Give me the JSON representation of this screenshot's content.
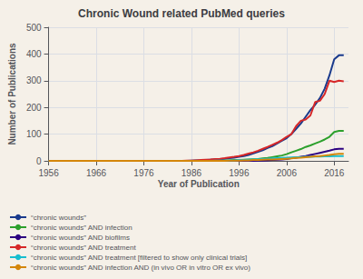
{
  "chart_data": {
    "type": "line",
    "title": "Chronic Wound related PubMed queries",
    "xlabel": "Year of Publication",
    "ylabel": "Number of Publications",
    "xlim": [
      1956,
      2019
    ],
    "ylim": [
      0,
      500
    ],
    "xticks": [
      1956,
      1966,
      1976,
      1986,
      1996,
      2006,
      2016
    ],
    "yticks": [
      0,
      100,
      200,
      300,
      400,
      500
    ],
    "grid": true,
    "legend": "lower left",
    "x": [
      1956,
      1957,
      1958,
      1959,
      1960,
      1961,
      1962,
      1963,
      1964,
      1965,
      1966,
      1967,
      1968,
      1969,
      1970,
      1971,
      1972,
      1973,
      1974,
      1975,
      1976,
      1977,
      1978,
      1979,
      1980,
      1981,
      1982,
      1983,
      1984,
      1985,
      1986,
      1987,
      1988,
      1989,
      1990,
      1991,
      1992,
      1993,
      1994,
      1995,
      1996,
      1997,
      1998,
      1999,
      2000,
      2001,
      2002,
      2003,
      2004,
      2005,
      2006,
      2007,
      2008,
      2009,
      2010,
      2011,
      2012,
      2013,
      2014,
      2015,
      2016,
      2017,
      2018
    ],
    "series": [
      {
        "name": "“chronic wounds”",
        "color": "#1a3a8c",
        "values": [
          0,
          0,
          0,
          0,
          0,
          0,
          0,
          0,
          0,
          0,
          0,
          0,
          0,
          0,
          0,
          0,
          0,
          0,
          0,
          0,
          0,
          0,
          0,
          0,
          0,
          0,
          0,
          0,
          0,
          0,
          1,
          2,
          2,
          3,
          4,
          5,
          6,
          8,
          10,
          12,
          15,
          18,
          22,
          28,
          34,
          40,
          48,
          55,
          65,
          75,
          85,
          100,
          120,
          140,
          165,
          190,
          210,
          235,
          270,
          320,
          380,
          395,
          395
        ]
      },
      {
        "name": "“chronic wounds” AND infection",
        "color": "#2ca02c",
        "values": [
          0,
          0,
          0,
          0,
          0,
          0,
          0,
          0,
          0,
          0,
          0,
          0,
          0,
          0,
          0,
          0,
          0,
          0,
          0,
          0,
          0,
          0,
          0,
          0,
          0,
          0,
          0,
          0,
          0,
          0,
          0,
          0,
          0,
          0,
          0,
          1,
          1,
          1,
          2,
          3,
          3,
          4,
          5,
          6,
          7,
          9,
          11,
          14,
          17,
          20,
          25,
          32,
          38,
          44,
          52,
          58,
          65,
          72,
          80,
          90,
          108,
          112,
          112
        ]
      },
      {
        "name": "“chronic wounds” AND biofilms",
        "color": "#2c0080",
        "values": [
          0,
          0,
          0,
          0,
          0,
          0,
          0,
          0,
          0,
          0,
          0,
          0,
          0,
          0,
          0,
          0,
          0,
          0,
          0,
          0,
          0,
          0,
          0,
          0,
          0,
          0,
          0,
          0,
          0,
          0,
          0,
          0,
          0,
          0,
          0,
          0,
          0,
          0,
          0,
          0,
          0,
          0,
          0,
          0,
          1,
          1,
          2,
          3,
          4,
          5,
          7,
          10,
          12,
          15,
          18,
          22,
          26,
          30,
          34,
          38,
          43,
          45,
          45
        ]
      },
      {
        "name": "“chronic wounds” AND treatment",
        "color": "#d62728",
        "values": [
          0,
          0,
          0,
          0,
          0,
          0,
          0,
          0,
          0,
          0,
          0,
          0,
          0,
          0,
          0,
          0,
          0,
          0,
          0,
          0,
          0,
          0,
          0,
          0,
          0,
          0,
          0,
          0,
          0,
          1,
          1,
          2,
          3,
          4,
          5,
          7,
          8,
          10,
          13,
          15,
          18,
          22,
          27,
          32,
          38,
          45,
          52,
          60,
          68,
          78,
          90,
          100,
          130,
          150,
          155,
          170,
          220,
          225,
          250,
          300,
          295,
          300,
          298
        ]
      },
      {
        "name": "“chronic wounds” AND treatment [filtered to show only clinical trials]",
        "color": "#17becf",
        "values": [
          0,
          0,
          0,
          0,
          0,
          0,
          0,
          0,
          0,
          0,
          0,
          0,
          0,
          0,
          0,
          0,
          0,
          0,
          0,
          0,
          0,
          0,
          0,
          0,
          0,
          0,
          0,
          0,
          0,
          0,
          0,
          0,
          0,
          0,
          0,
          1,
          1,
          1,
          2,
          2,
          3,
          3,
          4,
          5,
          6,
          7,
          8,
          9,
          10,
          11,
          12,
          13,
          14,
          14,
          15,
          15,
          16,
          16,
          17,
          17,
          18,
          18,
          18
        ]
      },
      {
        "name": "“chronic wounds” AND infection AND (in vivo OR in vitro OR ex vivo)",
        "color": "#d4860a",
        "values": [
          0,
          0,
          0,
          0,
          0,
          0,
          0,
          0,
          0,
          0,
          0,
          0,
          0,
          0,
          0,
          0,
          0,
          0,
          0,
          0,
          0,
          0,
          0,
          0,
          0,
          0,
          0,
          0,
          0,
          0,
          0,
          0,
          0,
          0,
          0,
          0,
          0,
          0,
          1,
          1,
          1,
          2,
          2,
          3,
          3,
          4,
          5,
          5,
          6,
          7,
          8,
          9,
          11,
          12,
          14,
          15,
          17,
          18,
          20,
          22,
          25,
          26,
          26
        ]
      }
    ]
  }
}
